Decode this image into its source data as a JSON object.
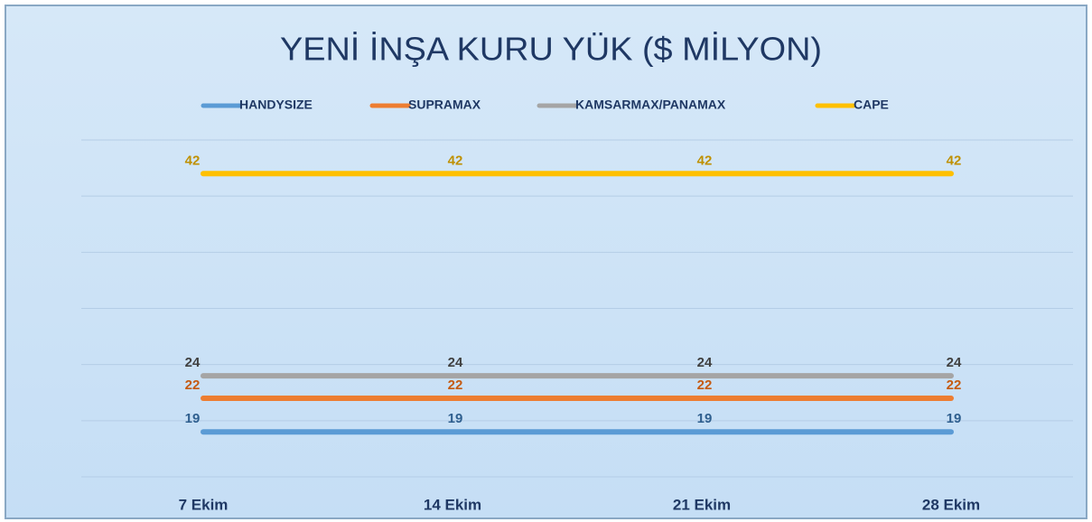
{
  "chart_data": {
    "type": "line",
    "title": "YENİ İNŞA KURU YÜK ($ MİLYON)",
    "categories": [
      "7 Ekim",
      "14 Ekim",
      "21 Ekim",
      "28 Ekim"
    ],
    "series": [
      {
        "name": "HANDYSIZE",
        "color": "#5b9bd5",
        "label_color": "#2f5f8f",
        "values": [
          19,
          19,
          19,
          19
        ]
      },
      {
        "name": "SUPRAMAX",
        "color": "#ed7d31",
        "label_color": "#c55a11",
        "values": [
          22,
          22,
          22,
          22
        ]
      },
      {
        "name": "KAMSARMAX/PANAMAX",
        "color": "#a5a5a5",
        "label_color": "#404040",
        "values": [
          24,
          24,
          24,
          24
        ]
      },
      {
        "name": "CAPE",
        "color": "#ffc000",
        "label_color": "#bf9000",
        "values": [
          42,
          42,
          42,
          42
        ]
      }
    ],
    "ylim": [
      15,
      45
    ],
    "yticks": [
      15,
      20,
      25,
      30,
      35,
      40,
      45
    ],
    "grid": true,
    "legend": "top"
  }
}
